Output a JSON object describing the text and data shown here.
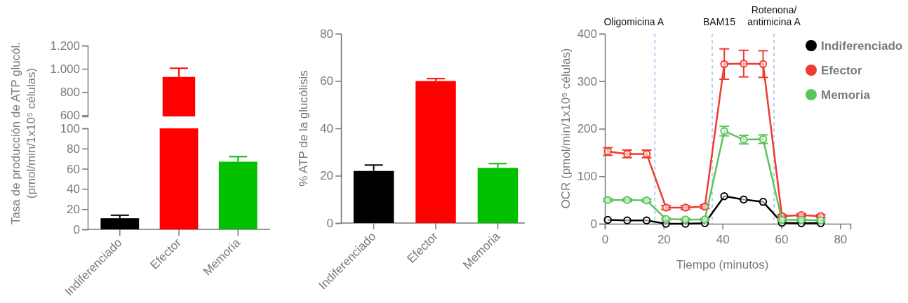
{
  "chart_data": [
    {
      "type": "bar",
      "categories": [
        null
      ],
      "values": [
        930
      ],
      "errors": [
        75
      ],
      "color": "#ff0000",
      "ylim": [
        590,
        1200
      ],
      "yticks": [
        600,
        800,
        {
          "value": 1000,
          "label": "1.000"
        },
        {
          "value": 1200,
          "label": "1.200"
        }
      ],
      "tick_labels": "y",
      "ylabel": "Tasa de producción de ATP glucól. (pmol/min/1x10⁵ células)"
    },
    {
      "type": "bar",
      "categories": [
        "Indiferenciado",
        "Efector",
        "Memoria"
      ],
      "values": [
        11,
        100,
        67
      ],
      "errors": [
        3,
        null,
        5
      ],
      "colors": [
        "#000000",
        "#ff0000",
        "#00c000"
      ],
      "ylim": [
        0,
        100
      ],
      "yticks": [
        0,
        20,
        40,
        60,
        80,
        100
      ]
    },
    {
      "type": "bar",
      "categories": [
        "Indiferenciado",
        "Efector",
        "Memoria"
      ],
      "values": [
        22,
        60,
        23.3
      ],
      "errors": [
        2.5,
        1,
        1.8
      ],
      "colors": [
        "#000000",
        "#ff0000",
        "#00c000"
      ],
      "ylim": [
        0,
        80
      ],
      "yticks": [
        0,
        20,
        40,
        60,
        80
      ],
      "ylabel": "% ATP de la glucólisis"
    },
    {
      "type": "line",
      "x": [
        1,
        7.6,
        14.2,
        20.8,
        27.4,
        34,
        40.6,
        47.2,
        53.8,
        60.2,
        66.8,
        73.4
      ],
      "xlim": [
        0,
        83.5
      ],
      "xticks": [
        0,
        20,
        40,
        60,
        80
      ],
      "ylim": [
        0,
        400
      ],
      "yticks": [
        0,
        100,
        200,
        300,
        400
      ],
      "xlabel": "Tiempo (minutos)",
      "ylabel": "OCR (pmol/min/1x10⁵ células)",
      "marker": "circle",
      "legend": "top right",
      "series": [
        {
          "name": "Indiferenciado",
          "color": "#000000",
          "values": [
            8,
            7,
            7,
            0,
            0,
            1,
            58,
            51,
            46,
            2,
            1,
            1
          ]
        },
        {
          "name": "Efector",
          "color": "#ef3a2e",
          "values": [
            152,
            147,
            147,
            34,
            34,
            36,
            336,
            337,
            336,
            16,
            18,
            16
          ],
          "errors": [
            8,
            8,
            8,
            4,
            4,
            4,
            32,
            28,
            28,
            3,
            3,
            3
          ]
        },
        {
          "name": "Memoria",
          "color": "#5cc45a",
          "values": [
            50,
            50,
            49,
            10,
            9,
            9,
            195,
            177,
            178,
            8,
            8,
            7
          ],
          "errors": [
            3,
            3,
            3,
            2,
            2,
            2,
            10,
            9,
            9,
            2,
            2,
            2
          ]
        }
      ],
      "ref_lines": [
        {
          "axis": "x",
          "value": 17,
          "label": "Oligomicina A",
          "color": "#9cc3ec",
          "line_style": "dashed"
        },
        {
          "axis": "x",
          "value": 36.5,
          "label": "BAM15",
          "color": "#9cc3ec",
          "line_style": "dashed"
        },
        {
          "axis": "x",
          "value": 57.5,
          "label": "Rotenona/ antimicina A",
          "color": "#9cc3ec",
          "line_style": "dashed"
        }
      ]
    }
  ]
}
